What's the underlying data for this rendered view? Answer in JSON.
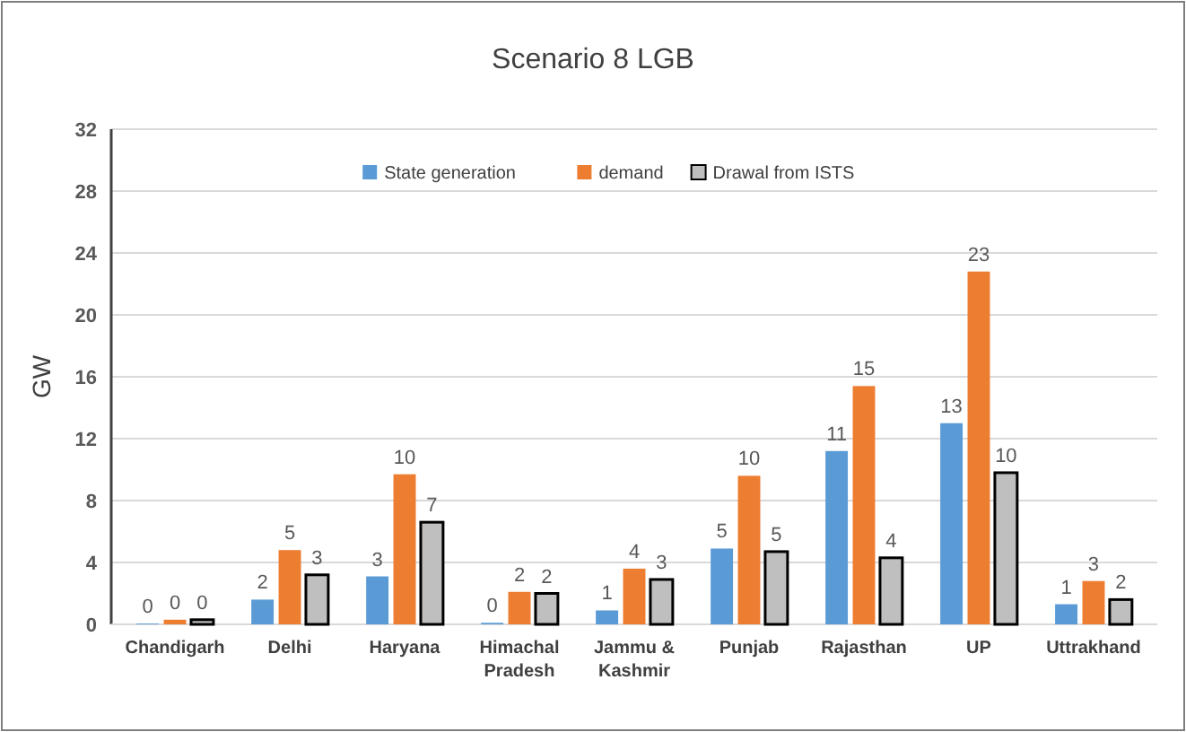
{
  "chart_data": {
    "type": "bar",
    "title": "Scenario 8 LGB",
    "ylabel": "GW",
    "categories": [
      "Chandigarh",
      "Delhi",
      "Haryana",
      "Himachal Pradesh",
      "Jammu & Kashmir",
      "Punjab",
      "Rajasthan",
      "UP",
      "Uttrakhand"
    ],
    "series": [
      {
        "name": "State generation",
        "color": "#5b9bd5",
        "values": [
          0.05,
          1.6,
          3.1,
          0.1,
          0.9,
          4.9,
          11.2,
          13.0,
          1.3
        ],
        "value_labels": [
          "0",
          "2",
          "3",
          "0",
          "1",
          "5",
          "11",
          "13",
          "1"
        ]
      },
      {
        "name": "demand",
        "color": "#ed7d31",
        "values": [
          0.3,
          4.8,
          9.7,
          2.1,
          3.6,
          9.6,
          15.4,
          22.8,
          2.8
        ],
        "value_labels": [
          "0",
          "5",
          "10",
          "2",
          "4",
          "10",
          "15",
          "23",
          "3"
        ]
      },
      {
        "name": "Drawal from ISTS",
        "color": "#bfbfbf",
        "values": [
          0.3,
          3.2,
          6.6,
          2.0,
          2.9,
          4.7,
          4.3,
          9.8,
          1.6
        ],
        "value_labels": [
          "0",
          "3",
          "7",
          "2",
          "3",
          "5",
          "4",
          "10",
          "2"
        ]
      }
    ],
    "ylim": [
      0,
      32
    ],
    "yticks": [
      0,
      4,
      8,
      12,
      16,
      20,
      24,
      28,
      32
    ],
    "grid": "y",
    "legend": "top"
  }
}
